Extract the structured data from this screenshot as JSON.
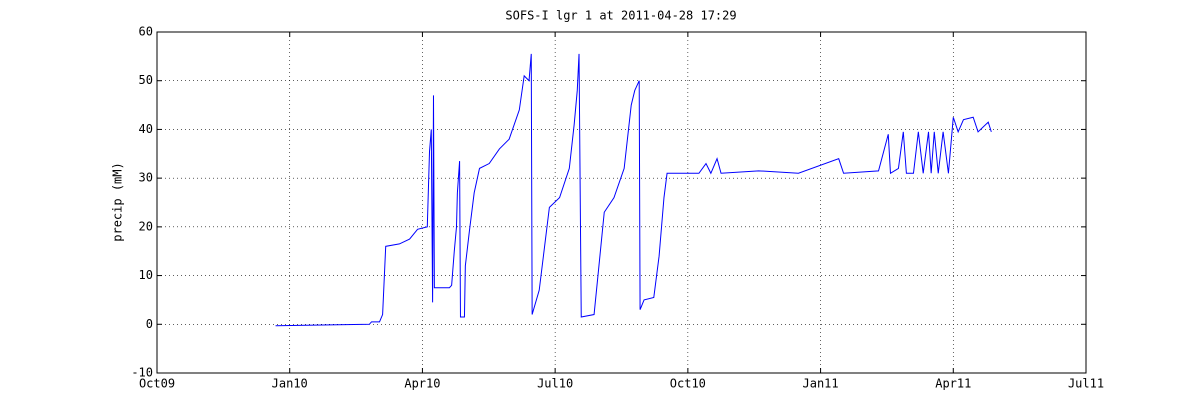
{
  "chart_data": {
    "type": "line",
    "title": "SOFS-I lgr 1 at 2011-04-28 17:29",
    "y_label": "precip (mM)",
    "color": "#0000ff",
    "grid": true,
    "xlim": [
      0,
      21
    ],
    "xticks": [
      {
        "value": 0,
        "label": "Oct09"
      },
      {
        "value": 3,
        "label": "Jan10"
      },
      {
        "value": 6,
        "label": "Apr10"
      },
      {
        "value": 9,
        "label": "Jul10"
      },
      {
        "value": 12,
        "label": "Oct10"
      },
      {
        "value": 15,
        "label": "Jan11"
      },
      {
        "value": 18,
        "label": "Apr11"
      },
      {
        "value": 21,
        "label": "Jul11"
      }
    ],
    "ylim": [
      -10,
      60
    ],
    "yticks": [
      -10,
      0,
      10,
      20,
      30,
      40,
      50,
      60
    ],
    "x": [
      2.68,
      4.8,
      4.85,
      5.03,
      5.1,
      5.17,
      5.48,
      5.71,
      5.89,
      6.11,
      6.16,
      6.2,
      6.23,
      6.25,
      6.27,
      6.61,
      6.66,
      6.72,
      6.77,
      6.79,
      6.84,
      6.86,
      6.95,
      6.97,
      7.06,
      7.17,
      7.29,
      7.51,
      7.74,
      7.96,
      8.19,
      8.3,
      8.41,
      8.46,
      8.48,
      8.64,
      8.87,
      9.1,
      9.32,
      9.43,
      9.5,
      9.54,
      9.59,
      9.88,
      9.99,
      10.11,
      10.33,
      10.56,
      10.72,
      10.8,
      10.9,
      10.92,
      11.01,
      11.23,
      11.35,
      11.46,
      11.53,
      12.25,
      12.41,
      12.52,
      12.66,
      12.75,
      13.6,
      14.5,
      15.41,
      15.52,
      16.31,
      16.53,
      16.58,
      16.76,
      16.87,
      16.94,
      17.1,
      17.21,
      17.32,
      17.44,
      17.5,
      17.57,
      17.66,
      17.77,
      17.89,
      18.0,
      18.11,
      18.23,
      18.45,
      18.56,
      18.79,
      18.86
    ],
    "values": [
      -0.3,
      0,
      0.5,
      0.5,
      2,
      16,
      16.5,
      17.5,
      19.5,
      20,
      35.5,
      40,
      4.5,
      47,
      7.5,
      7.5,
      8,
      15,
      20,
      27,
      33.5,
      1.5,
      1.5,
      12,
      19,
      27,
      32,
      33,
      36,
      38,
      44,
      51,
      50,
      55.5,
      2,
      7,
      24,
      26,
      32,
      41,
      48,
      55.5,
      1.5,
      2,
      12,
      23,
      26,
      32,
      45,
      48,
      50,
      3,
      5,
      5.5,
      14,
      26,
      31,
      31,
      33,
      31,
      34,
      31,
      31.5,
      31,
      34,
      31,
      31.5,
      39,
      31,
      32,
      39.5,
      31,
      31,
      39.5,
      31,
      39.5,
      31,
      39.5,
      31,
      39.5,
      31,
      42.5,
      39.5,
      42,
      42.5,
      39.5,
      41.5,
      39.5
    ]
  }
}
